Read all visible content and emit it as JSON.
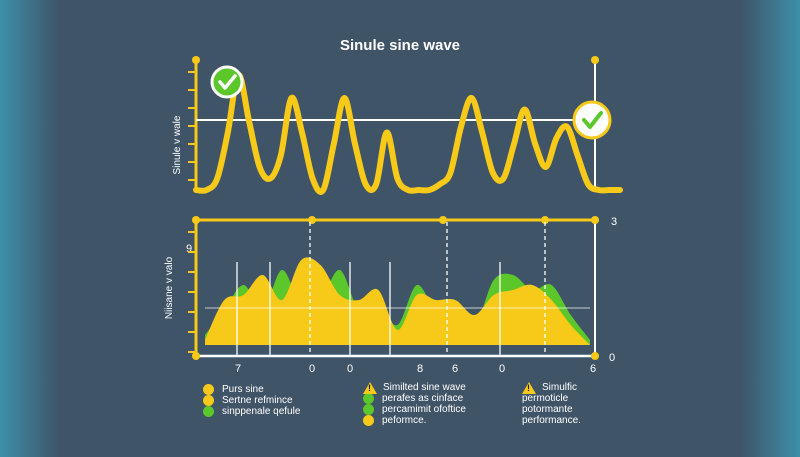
{
  "colors": {
    "background": "#405468",
    "yellow": "#f7c918",
    "green": "#5cc72a",
    "white": "#ffffff"
  },
  "chart_data": [
    {
      "type": "line",
      "title": "Sinule sine wave",
      "ylabel": "Sinule v wale",
      "x": [
        0,
        1,
        2,
        3,
        4,
        5,
        6,
        7,
        8,
        9,
        10,
        11,
        12,
        13,
        14,
        15,
        16,
        17,
        18,
        19,
        20,
        21,
        22,
        23,
        24,
        25,
        26,
        27,
        28,
        29,
        30,
        31,
        32,
        33,
        34,
        35,
        36,
        37,
        38,
        39,
        40
      ],
      "series": [
        {
          "values": [
            0,
            0,
            0.1,
            0.5,
            1.0,
            0.6,
            0.2,
            0.1,
            0.3,
            0.8,
            0.5,
            0.1,
            0.0,
            0.4,
            0.8,
            0.4,
            0.05,
            0.05,
            0.5,
            0.1,
            0.0,
            0.0,
            0.0,
            0.05,
            0.15,
            0.55,
            0.8,
            0.5,
            0.15,
            0.1,
            0.4,
            0.7,
            0.4,
            0.2,
            0.45,
            0.55,
            0.3,
            0.05,
            0.0,
            0.0,
            0.0
          ]
        }
      ],
      "markers": [
        {
          "icon": "check-circle-icon",
          "position": "top-left"
        },
        {
          "icon": "check-circle-icon",
          "position": "top-right"
        }
      ],
      "grid": true
    },
    {
      "type": "area",
      "ylabel": "Niisane v valo",
      "y_top_tick": "9",
      "right_tick_top": "3",
      "right_tick_bottom": "0",
      "x_tick_labels": [
        "7",
        "0",
        "0",
        "8",
        "6",
        "0",
        "6"
      ],
      "x": [
        0,
        1,
        2,
        3,
        4,
        5,
        6,
        7,
        8,
        9,
        10,
        11,
        12,
        13,
        14,
        15,
        16,
        17,
        18,
        19,
        20
      ],
      "series": [
        {
          "values": [
            0.1,
            0.35,
            0.6,
            0.35,
            0.75,
            0.4,
            0.45,
            0.75,
            0.35,
            0.4,
            0.2,
            0.6,
            0.35,
            0.45,
            0.2,
            0.65,
            0.7,
            0.55,
            0.6,
            0.3,
            0.05
          ]
        },
        {
          "values": [
            0.05,
            0.45,
            0.5,
            0.7,
            0.45,
            0.85,
            0.8,
            0.5,
            0.45,
            0.55,
            0.15,
            0.5,
            0.45,
            0.45,
            0.3,
            0.5,
            0.55,
            0.6,
            0.45,
            0.2,
            0.0
          ]
        }
      ],
      "grid": true
    }
  ],
  "legend": {
    "col1": [
      "Purs sine",
      "Sertne refmince",
      "sinppenale qefule"
    ],
    "col2": [
      "Similted sine wave",
      "perafes as cinface",
      "percamimit ofoftice",
      "peformce."
    ],
    "col3": [
      "Simulfic",
      "permoticle",
      "potormante",
      "performance."
    ]
  }
}
